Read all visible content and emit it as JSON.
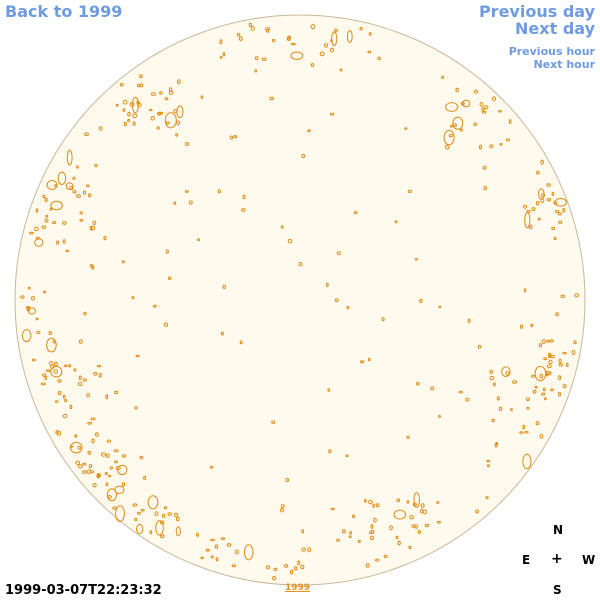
{
  "nav": {
    "back": "Back to 1999",
    "previous_day": "Previous day",
    "next_day": "Next day",
    "previous_hour": "Previous hour",
    "next_hour": "Next hour"
  },
  "compass": {
    "n": "N",
    "e": "E",
    "center": "+",
    "w": "W",
    "s": "S"
  },
  "timestamp": "1999-03-07T22:23:32",
  "year_link": "1999",
  "colors": {
    "link": "#6f9be0",
    "disk_fill": "#fffaee",
    "disk_edge": "#c8b89a",
    "contour": "#e08a10"
  }
}
